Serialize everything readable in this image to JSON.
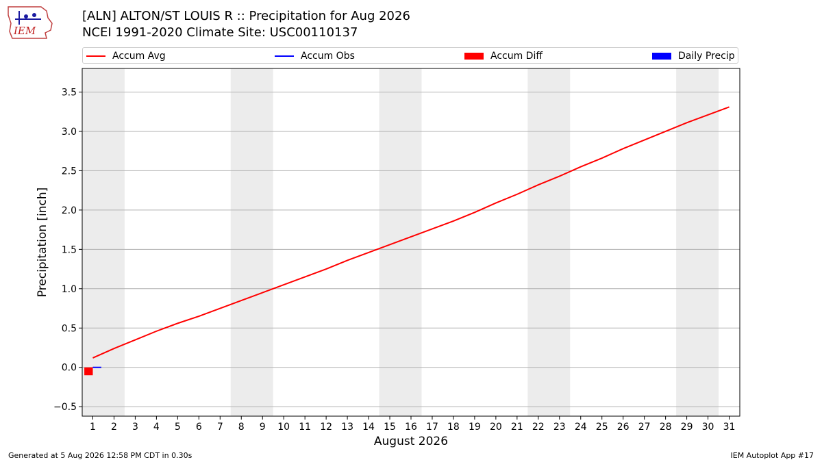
{
  "header": {
    "title_line1": "[ALN] ALTON/ST LOUIS R :: Precipitation for Aug 2026",
    "title_line2": "NCEI 1991-2020 Climate Site: USC00110137",
    "logo_text": "IEM"
  },
  "legend": {
    "items": [
      {
        "label": "Accum Avg",
        "kind": "line",
        "color": "#ff0000"
      },
      {
        "label": "Accum Obs",
        "kind": "line",
        "color": "#0000ff"
      },
      {
        "label": "Accum Diff",
        "kind": "box",
        "color": "#ff0000"
      },
      {
        "label": "Daily Precip",
        "kind": "box",
        "color": "#0000ff"
      }
    ]
  },
  "footer": {
    "generated": "Generated at 5 Aug 2026 12:58 PM CDT in 0.30s",
    "app": "IEM Autoplot App #17"
  },
  "chart_data": {
    "type": "line",
    "title": "[ALN] ALTON/ST LOUIS R :: Precipitation for Aug 2026",
    "subtitle": "NCEI 1991-2020 Climate Site: USC00110137",
    "xlabel": "August 2026",
    "ylabel": "Precipitation [inch]",
    "xlim": [
      0.5,
      31.5
    ],
    "ylim": [
      -0.62,
      3.8
    ],
    "x_ticks": [
      1,
      2,
      3,
      4,
      5,
      6,
      7,
      8,
      9,
      10,
      11,
      12,
      13,
      14,
      15,
      16,
      17,
      18,
      19,
      20,
      21,
      22,
      23,
      24,
      25,
      26,
      27,
      28,
      29,
      30,
      31
    ],
    "y_ticks": [
      -0.5,
      0.0,
      0.5,
      1.0,
      1.5,
      2.0,
      2.5,
      3.0,
      3.5
    ],
    "y_tick_labels": [
      "−0.5",
      "0.0",
      "0.5",
      "1.0",
      "1.5",
      "2.0",
      "2.5",
      "3.0",
      "3.5"
    ],
    "grid": "horizontal",
    "legend_position": "top",
    "weekend_shading": [
      [
        0.5,
        2.5
      ],
      [
        7.5,
        9.5
      ],
      [
        14.5,
        16.5
      ],
      [
        21.5,
        23.5
      ],
      [
        28.5,
        30.5
      ]
    ],
    "series": [
      {
        "name": "Accum Avg",
        "type": "line",
        "color": "#ff0000",
        "x": [
          1,
          2,
          3,
          4,
          5,
          6,
          7,
          8,
          9,
          10,
          11,
          12,
          13,
          14,
          15,
          16,
          17,
          18,
          19,
          20,
          21,
          22,
          23,
          24,
          25,
          26,
          27,
          28,
          29,
          30,
          31
        ],
        "values": [
          0.12,
          0.24,
          0.35,
          0.46,
          0.56,
          0.65,
          0.75,
          0.85,
          0.95,
          1.05,
          1.15,
          1.25,
          1.36,
          1.46,
          1.56,
          1.66,
          1.76,
          1.86,
          1.97,
          2.09,
          2.2,
          2.32,
          2.43,
          2.55,
          2.66,
          2.78,
          2.89,
          3.0,
          3.11,
          3.21,
          3.31
        ]
      },
      {
        "name": "Accum Obs",
        "type": "line",
        "color": "#0000ff",
        "x": [
          1,
          1.4
        ],
        "values": [
          0.0,
          0.0
        ]
      },
      {
        "name": "Accum Diff",
        "type": "bar",
        "color": "#ff0000",
        "x": [
          0.8
        ],
        "values": [
          -0.1
        ]
      },
      {
        "name": "Daily Precip",
        "type": "bar",
        "color": "#0000ff",
        "x": [],
        "values": []
      }
    ]
  }
}
